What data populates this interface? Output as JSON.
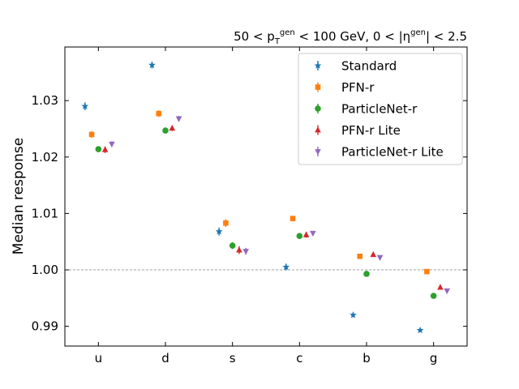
{
  "chart_data": {
    "type": "scatter",
    "title_parts": [
      "50 < p",
      "T",
      "gen",
      " < 100 GeV, 0 < |η",
      "gen",
      "| < 2.5"
    ],
    "xlabel": "",
    "ylabel": "Median response",
    "categories": [
      "u",
      "d",
      "s",
      "c",
      "b",
      "g"
    ],
    "ylim": [
      0.9865,
      1.0395
    ],
    "yticks": [
      0.99,
      1.0,
      1.01,
      1.02,
      1.03
    ],
    "ytick_labels": [
      "0.99",
      "1.00",
      "1.01",
      "1.02",
      "1.03"
    ],
    "reference_line": 1.0,
    "legend_position": "top-right",
    "series": [
      {
        "name": "Standard",
        "color": "#1f77b4",
        "marker": "star",
        "offset": -0.2,
        "values": [
          1.029,
          1.0363,
          1.0068,
          1.0005,
          0.992,
          0.9893
        ],
        "errors": [
          0.0007,
          0.0006,
          0.0007,
          0.0006,
          0.0004,
          0.0003
        ]
      },
      {
        "name": "PFN-r",
        "color": "#ff7f0e",
        "marker": "square",
        "offset": -0.1,
        "values": [
          1.024,
          1.0277,
          1.0083,
          1.0091,
          1.0024,
          0.9997
        ],
        "errors": [
          0.0006,
          0.0006,
          0.0007,
          0.0005,
          0.0003,
          0.0003
        ]
      },
      {
        "name": "ParticleNet-r",
        "color": "#2ca02c",
        "marker": "circle",
        "offset": 0.0,
        "values": [
          1.0214,
          1.0247,
          1.0043,
          1.006,
          0.9993,
          0.9954
        ],
        "errors": [
          0.0005,
          0.0005,
          0.0006,
          0.0005,
          0.0003,
          0.0003
        ]
      },
      {
        "name": "PFN-r Lite",
        "color": "#d62728",
        "marker": "triangle-up",
        "offset": 0.1,
        "values": [
          1.0213,
          1.0251,
          1.0035,
          1.0062,
          1.0027,
          0.9969
        ],
        "errors": [
          0.0006,
          0.0005,
          0.0007,
          0.0005,
          0.0004,
          0.0003
        ]
      },
      {
        "name": "ParticleNet-r Lite",
        "color": "#9467bd",
        "marker": "triangle-down",
        "offset": 0.2,
        "values": [
          1.0223,
          1.0268,
          1.0033,
          1.0065,
          1.0022,
          0.9963
        ],
        "errors": [
          0.0005,
          0.0005,
          0.0006,
          0.0004,
          0.0003,
          0.0003
        ]
      }
    ]
  }
}
